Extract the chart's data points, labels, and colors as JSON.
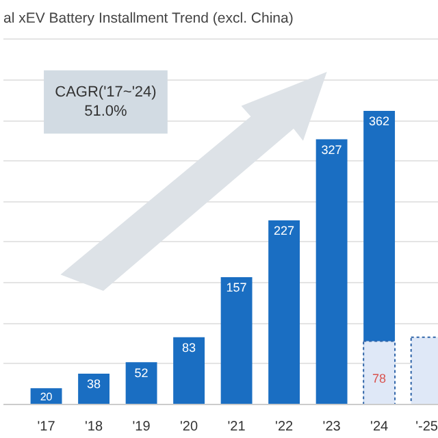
{
  "chart_data": {
    "type": "bar",
    "title": "al xEV Battery Installment Trend (excl. China)",
    "categories": [
      "'17",
      "'18",
      "'19",
      "'20",
      "'21",
      "'22",
      "'23",
      "'24",
      "'-25"
    ],
    "series": [
      {
        "color": "#1a6ec2",
        "values": [
          20,
          38,
          52,
          83,
          157,
          227,
          327,
          362,
          null
        ],
        "value_labels": [
          "20",
          "38",
          "52",
          "83",
          "157",
          "227",
          "327",
          "362",
          null
        ]
      },
      {
        "color": "#dfe8f7",
        "values": [
          null,
          null,
          null,
          null,
          null,
          null,
          null,
          78,
          83
        ],
        "value_labels": [
          null,
          null,
          null,
          null,
          null,
          null,
          null,
          "78",
          null
        ],
        "line_style": "dotted"
      }
    ],
    "tick_labels": "x",
    "grid": "y",
    "annotations": [
      "CAGR('17~'24)\n51.0%"
    ]
  }
}
